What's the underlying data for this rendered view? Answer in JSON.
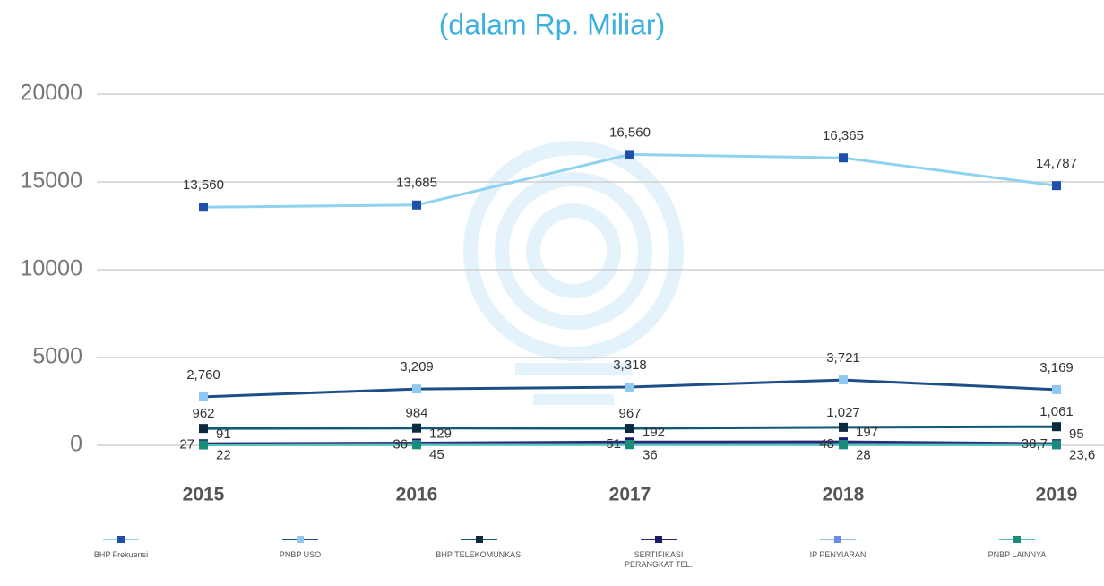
{
  "chart_data": {
    "type": "line",
    "title": "(dalam Rp. Miliar)",
    "categories": [
      "2015",
      "2016",
      "2017",
      "2018",
      "2019"
    ],
    "ylim": [
      0,
      20000
    ],
    "yticks": [
      0,
      5000,
      10000,
      15000,
      20000
    ],
    "grid": true,
    "legend": "bottom",
    "series": [
      {
        "name": "BHP Frekuensi",
        "color": "#8fd2f0",
        "marker_color": "#1f4fa8",
        "values": [
          13560,
          13685,
          16560,
          16365,
          14787
        ],
        "value_labels": [
          "13,560",
          "13,685",
          "16,560",
          "16,365",
          "14,787"
        ]
      },
      {
        "name": "PNBP USO",
        "color": "#1f4f8a",
        "marker_color": "#8fc8f0",
        "values": [
          2760,
          3209,
          3318,
          3721,
          3169
        ],
        "value_labels": [
          "2,760",
          "3,209",
          "3,318",
          "3,721",
          "3,169"
        ]
      },
      {
        "name": "BHP TELEKOMUNKASI",
        "color": "#0f5a7a",
        "marker_color": "#0a2a40",
        "values": [
          962,
          984,
          967,
          1027,
          1061
        ],
        "value_labels": [
          "962",
          "984",
          "967",
          "1,027",
          "1,061"
        ]
      },
      {
        "name": "SERTIFIKASI PERANGKAT TEL.",
        "color": "#2a2a7a",
        "marker_color": "#1a1a6a",
        "values": [
          91,
          129,
          192,
          197,
          95
        ]
      },
      {
        "name": "IP PENYIARAN",
        "color": "#9ab8f0",
        "marker_color": "#6a8ae8",
        "values": [
          22,
          45,
          36,
          28,
          23.6
        ],
        "value_labels": [
          "22",
          "45",
          "36",
          "28",
          "23,6"
        ]
      },
      {
        "name": "PNBP LAINNYA",
        "color": "#4ec8b8",
        "marker_color": "#1a8a7a",
        "values": [
          27,
          36,
          51,
          48,
          38.7
        ],
        "value_labels": [
          "27",
          "36",
          "51",
          "48",
          "38,7"
        ]
      }
    ]
  }
}
